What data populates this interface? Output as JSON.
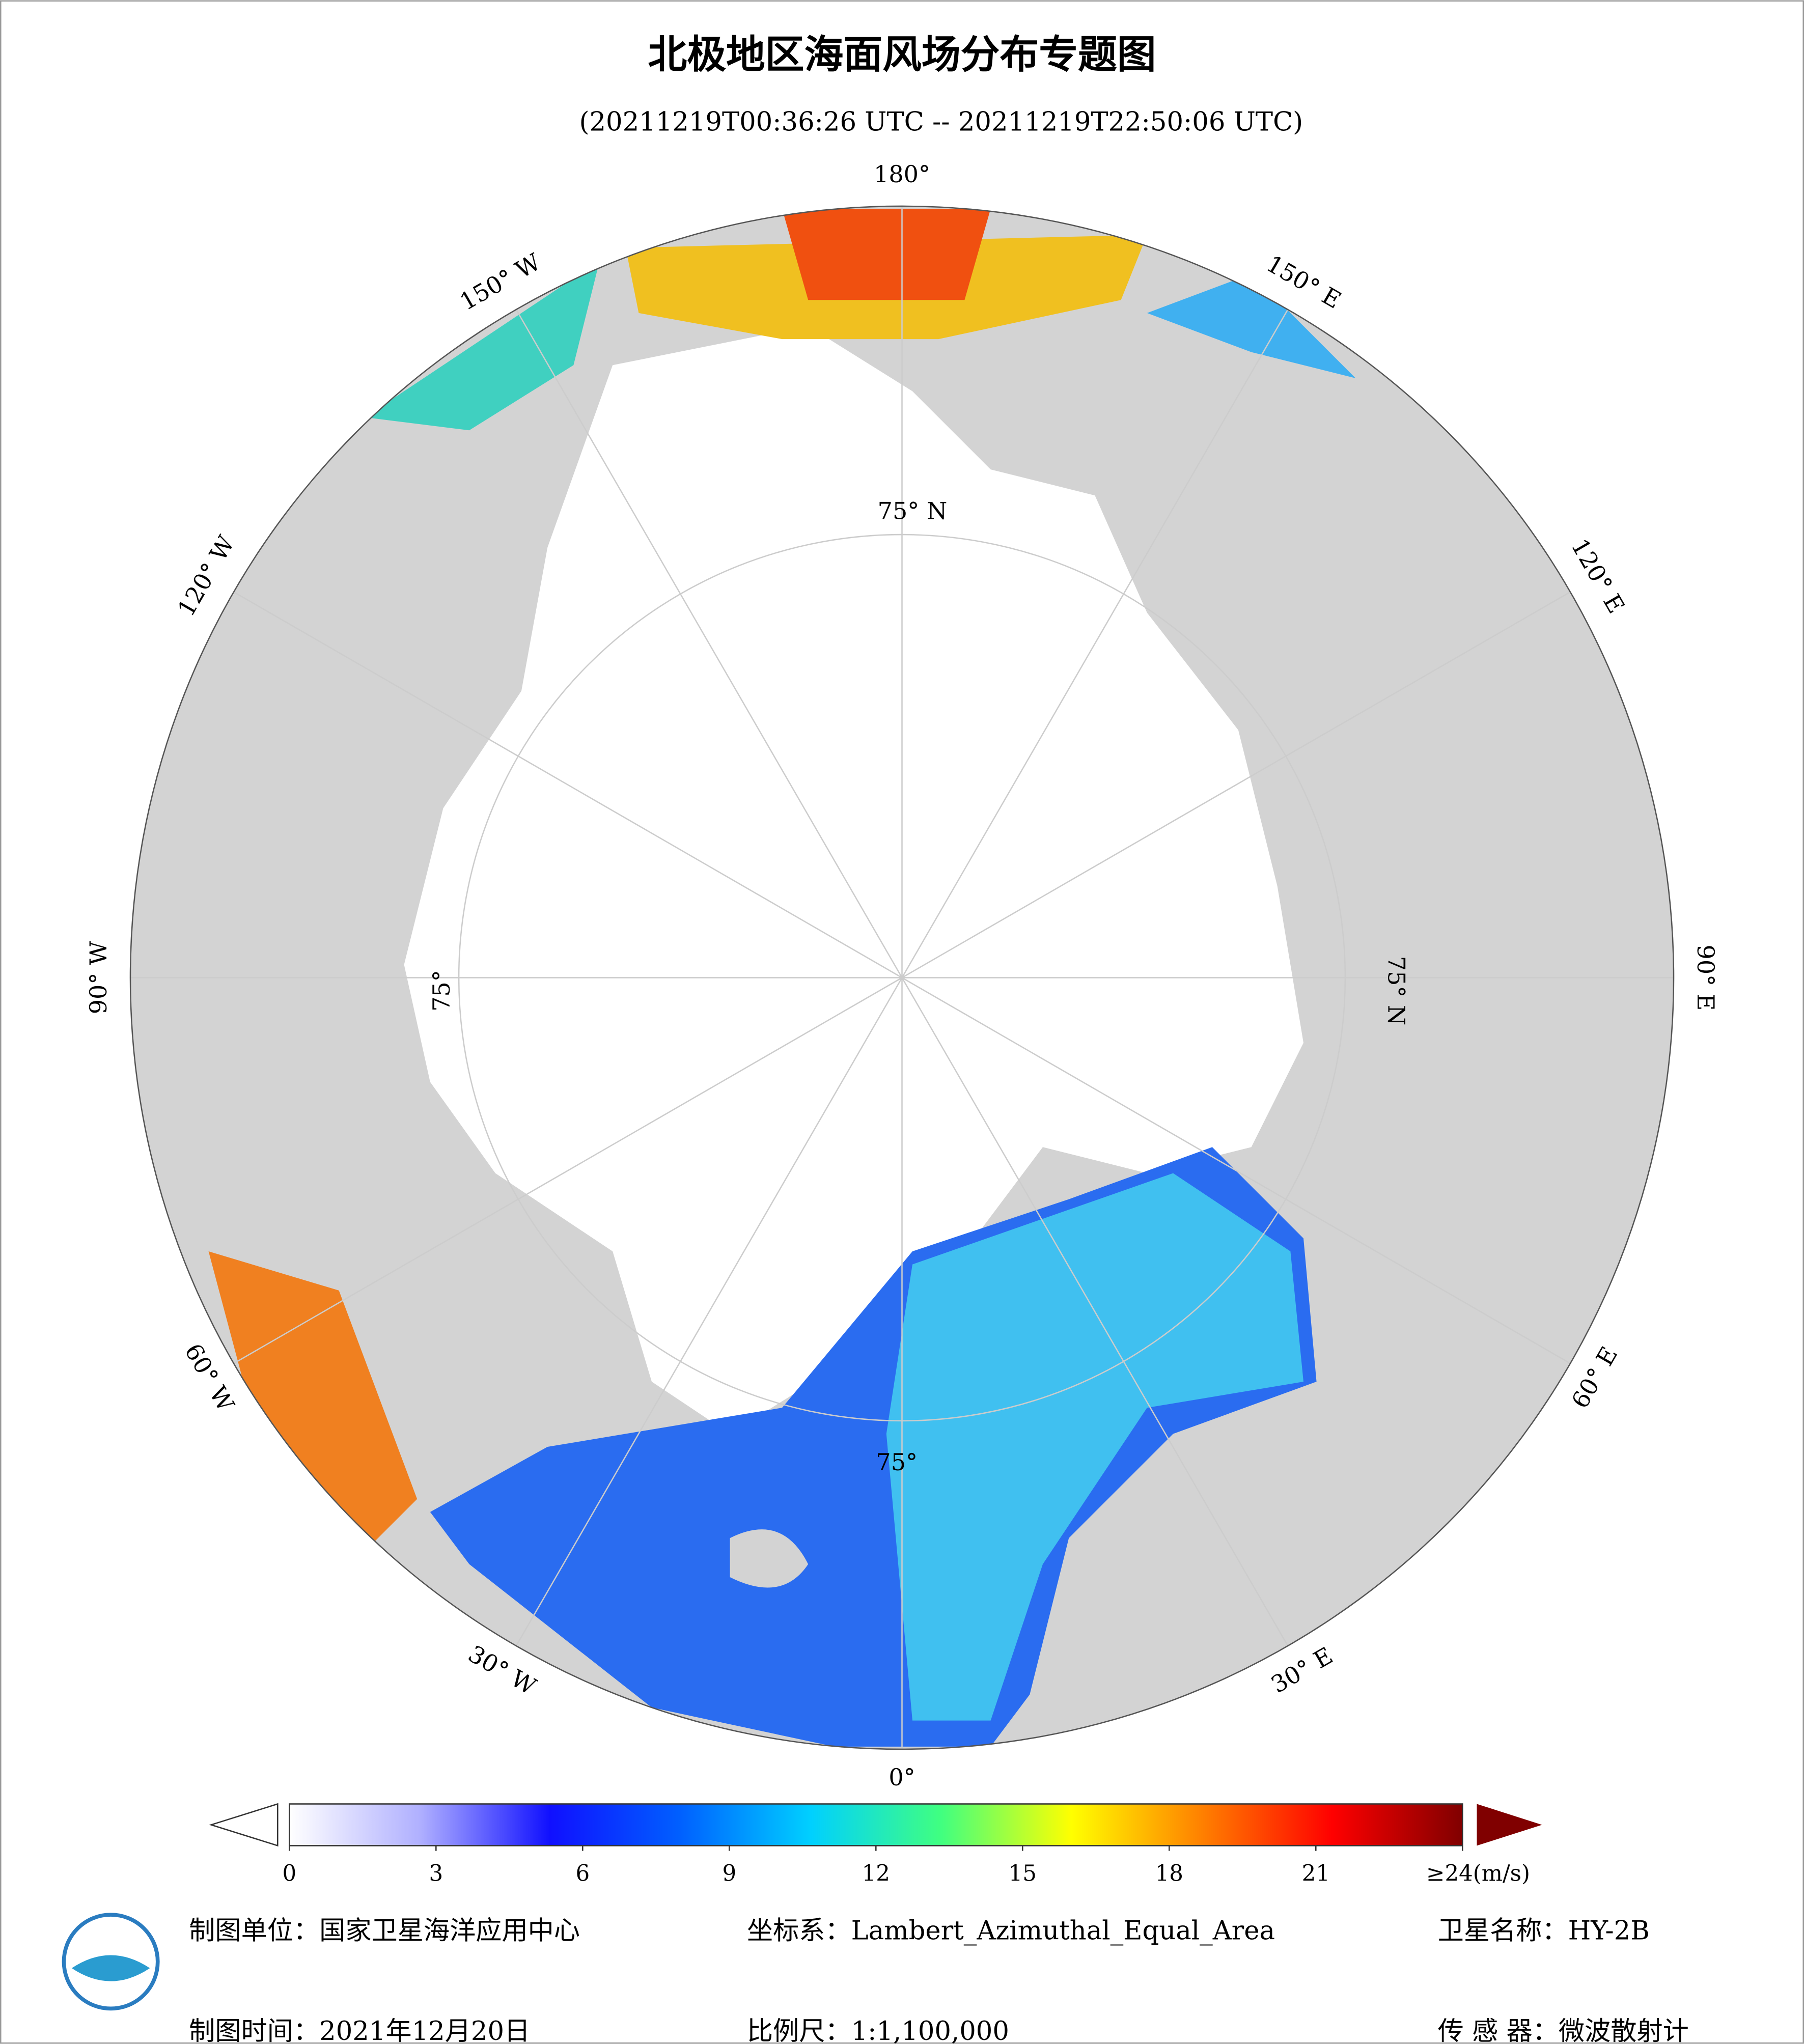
{
  "title": "北极地区海面风场分布专题图",
  "subtitle": "(20211219T00:36:26 UTC -- 20211219T22:50:06 UTC)",
  "meridian_labels": [
    "180°",
    "150° E",
    "120° E",
    "90° E",
    "60° E",
    "30° E",
    "0°",
    "30° W",
    "60° W",
    "90° W",
    "120° W",
    "150° W"
  ],
  "latitude_labels": [
    "75° N",
    "75° N",
    "75°",
    "75°"
  ],
  "colorbar": {
    "lim": [
      0,
      24
    ],
    "ticks": [
      0,
      3,
      6,
      9,
      12,
      15,
      18,
      21,
      {
        "value": 24,
        "label": "≥24(m/s)"
      }
    ],
    "colors": [
      "#ffffff",
      "#b0b0ff",
      "#1010ff",
      "#0060ff",
      "#00d0ff",
      "#40ff80",
      "#ffff00",
      "#ff8000",
      "#ff0000",
      "#800000"
    ]
  },
  "footer": {
    "unit": "制图单位：国家卫星海洋应用中心",
    "crs": "坐标系：Lambert_Azimuthal_Equal_Area",
    "satellite": "卫星名称：HY-2B",
    "date": "制图时间：2021年12月20日",
    "scale": "比例尺：1:1,100,000",
    "sensor": "传 感 器：微波散射计"
  }
}
